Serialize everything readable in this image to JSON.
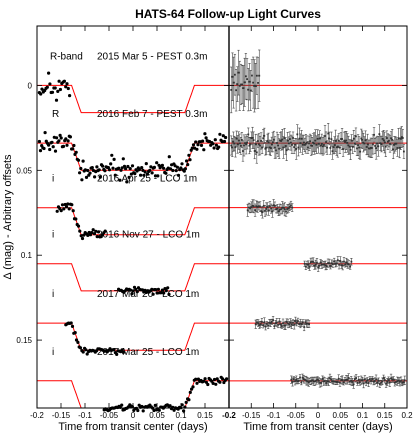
{
  "chart_data": {
    "type": "scatter",
    "title": "HATS-64 Follow-up Light Curves",
    "ylabel": "Δ (mag) - Arbitrary offsets",
    "panels": [
      {
        "xlabel": "Time from transit center (days)",
        "xlim": [
          -0.2,
          0.2
        ],
        "xticks": [
          "-0.2",
          "-0.15",
          "-0.1",
          "-0.05",
          "0",
          "0.05",
          "0.1",
          "0.15"
        ]
      },
      {
        "xlabel": "Time from transit center (days)",
        "xlim": [
          -0.2,
          0.2
        ],
        "xticks": [
          "-0.2",
          "-0.15",
          "-0.1",
          "-0.05",
          "0",
          "0.05",
          "0.1",
          "0.15",
          "0.2"
        ]
      }
    ],
    "ylim": [
      -0.035,
      0.19
    ],
    "yticks": [
      {
        "label": "0",
        "value": 0
      },
      {
        "label": "0.05",
        "value": 0.05
      },
      {
        "label": "0.1",
        "value": 0.1
      },
      {
        "label": "0.15",
        "value": 0.15
      }
    ],
    "model": {
      "color": "#ff0000",
      "depth": 0.016,
      "t1": -0.128,
      "t2": -0.108,
      "t3": 0.108,
      "t4": 0.128
    },
    "series": [
      {
        "filter": "R-band",
        "date": "2015 Mar 5 - PEST 0.3m",
        "offset": 0.0,
        "t_start": -0.195,
        "t_end": -0.132,
        "scatter": 0.006,
        "resid_err": 0.012
      },
      {
        "filter": "R",
        "date": "2016 Feb 7 - PEST 0.3m",
        "offset": 0.034,
        "t_start": -0.195,
        "t_end": 0.193,
        "scatter": 0.004,
        "resid_err": 0.005
      },
      {
        "filter": "i",
        "date": "2016 Apr 25 - LCO 1m",
        "offset": 0.072,
        "t_start": -0.158,
        "t_end": -0.058,
        "scatter": 0.002,
        "resid_err": 0.003
      },
      {
        "filter": "i",
        "date": "2016 Nov 27 - LCO 1m",
        "offset": 0.105,
        "t_start": -0.03,
        "t_end": 0.075,
        "scatter": 0.0015,
        "resid_err": 0.002
      },
      {
        "filter": "i",
        "date": "2017 Mar 20 - LCO 1m",
        "offset": 0.14,
        "t_start": -0.14,
        "t_end": -0.02,
        "scatter": 0.0015,
        "resid_err": 0.002
      },
      {
        "filter": "i",
        "date": "2017 Mar 25 - LCO 1m",
        "offset": 0.174,
        "t_start": -0.06,
        "t_end": 0.195,
        "scatter": 0.0015,
        "resid_err": 0.002
      }
    ]
  }
}
